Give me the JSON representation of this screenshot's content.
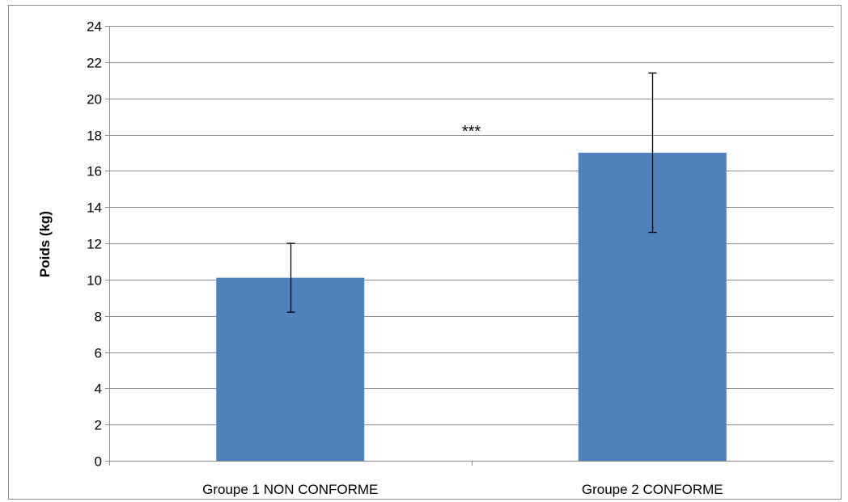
{
  "chart_data": {
    "type": "bar",
    "title": "",
    "xlabel": "",
    "ylabel": "Poids (kg)",
    "ylim": [
      0,
      24
    ],
    "y_ticks": [
      0,
      2,
      4,
      6,
      8,
      10,
      12,
      14,
      16,
      18,
      20,
      22,
      24
    ],
    "y_tick_labels": [
      "0",
      "2",
      "4",
      "6",
      "8",
      "10",
      "12",
      "14",
      "16",
      "18",
      "20",
      "22",
      "24"
    ],
    "grid": true,
    "legend": "none",
    "categories": [
      "Groupe 1 NON CONFORME",
      "Groupe 2 CONFORME"
    ],
    "values": [
      10.1,
      17.0
    ],
    "error_bars": [
      {
        "low": 8.2,
        "high": 12.0
      },
      {
        "low": 12.6,
        "high": 21.4
      }
    ],
    "bar_color": "#4f81bd",
    "gridline_color": "#8c8c8c",
    "annotation": {
      "text": "***",
      "y": 18.2
    }
  }
}
